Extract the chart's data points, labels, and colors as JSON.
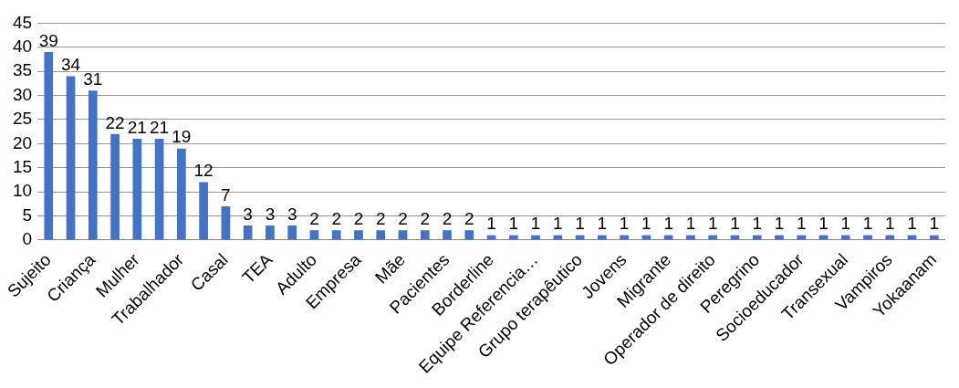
{
  "chart_data": {
    "type": "bar",
    "categories": [
      "Sujeito",
      null,
      "Criança",
      null,
      "Mulher",
      null,
      "Trabalhador",
      null,
      "Casal",
      null,
      "TEA",
      null,
      "Adulto",
      null,
      "Empresa",
      null,
      "Mãe",
      null,
      "Pacientes",
      null,
      "Borderline",
      null,
      "Equipe Referencia…",
      null,
      "Grupo terapêutico",
      null,
      "Jovens",
      null,
      "Migrante",
      null,
      "Operador de direito",
      null,
      "Peregrino",
      null,
      "Socioeducador",
      null,
      "Transexual",
      null,
      "Vampiros",
      null,
      "Yokaanam"
    ],
    "values": [
      39,
      34,
      31,
      22,
      21,
      21,
      19,
      12,
      7,
      3,
      3,
      3,
      2,
      2,
      2,
      2,
      2,
      2,
      2,
      2,
      1,
      1,
      1,
      1,
      1,
      1,
      1,
      1,
      1,
      1,
      1,
      1,
      1,
      1,
      1,
      1,
      1,
      1,
      1,
      1,
      1
    ],
    "color": "#4472c4",
    "ylim": [
      0,
      45
    ],
    "yticks": [
      0,
      5,
      10,
      15,
      20,
      25,
      30,
      35,
      40,
      45
    ],
    "grid": "y",
    "data_labels": true,
    "legend": false
  }
}
